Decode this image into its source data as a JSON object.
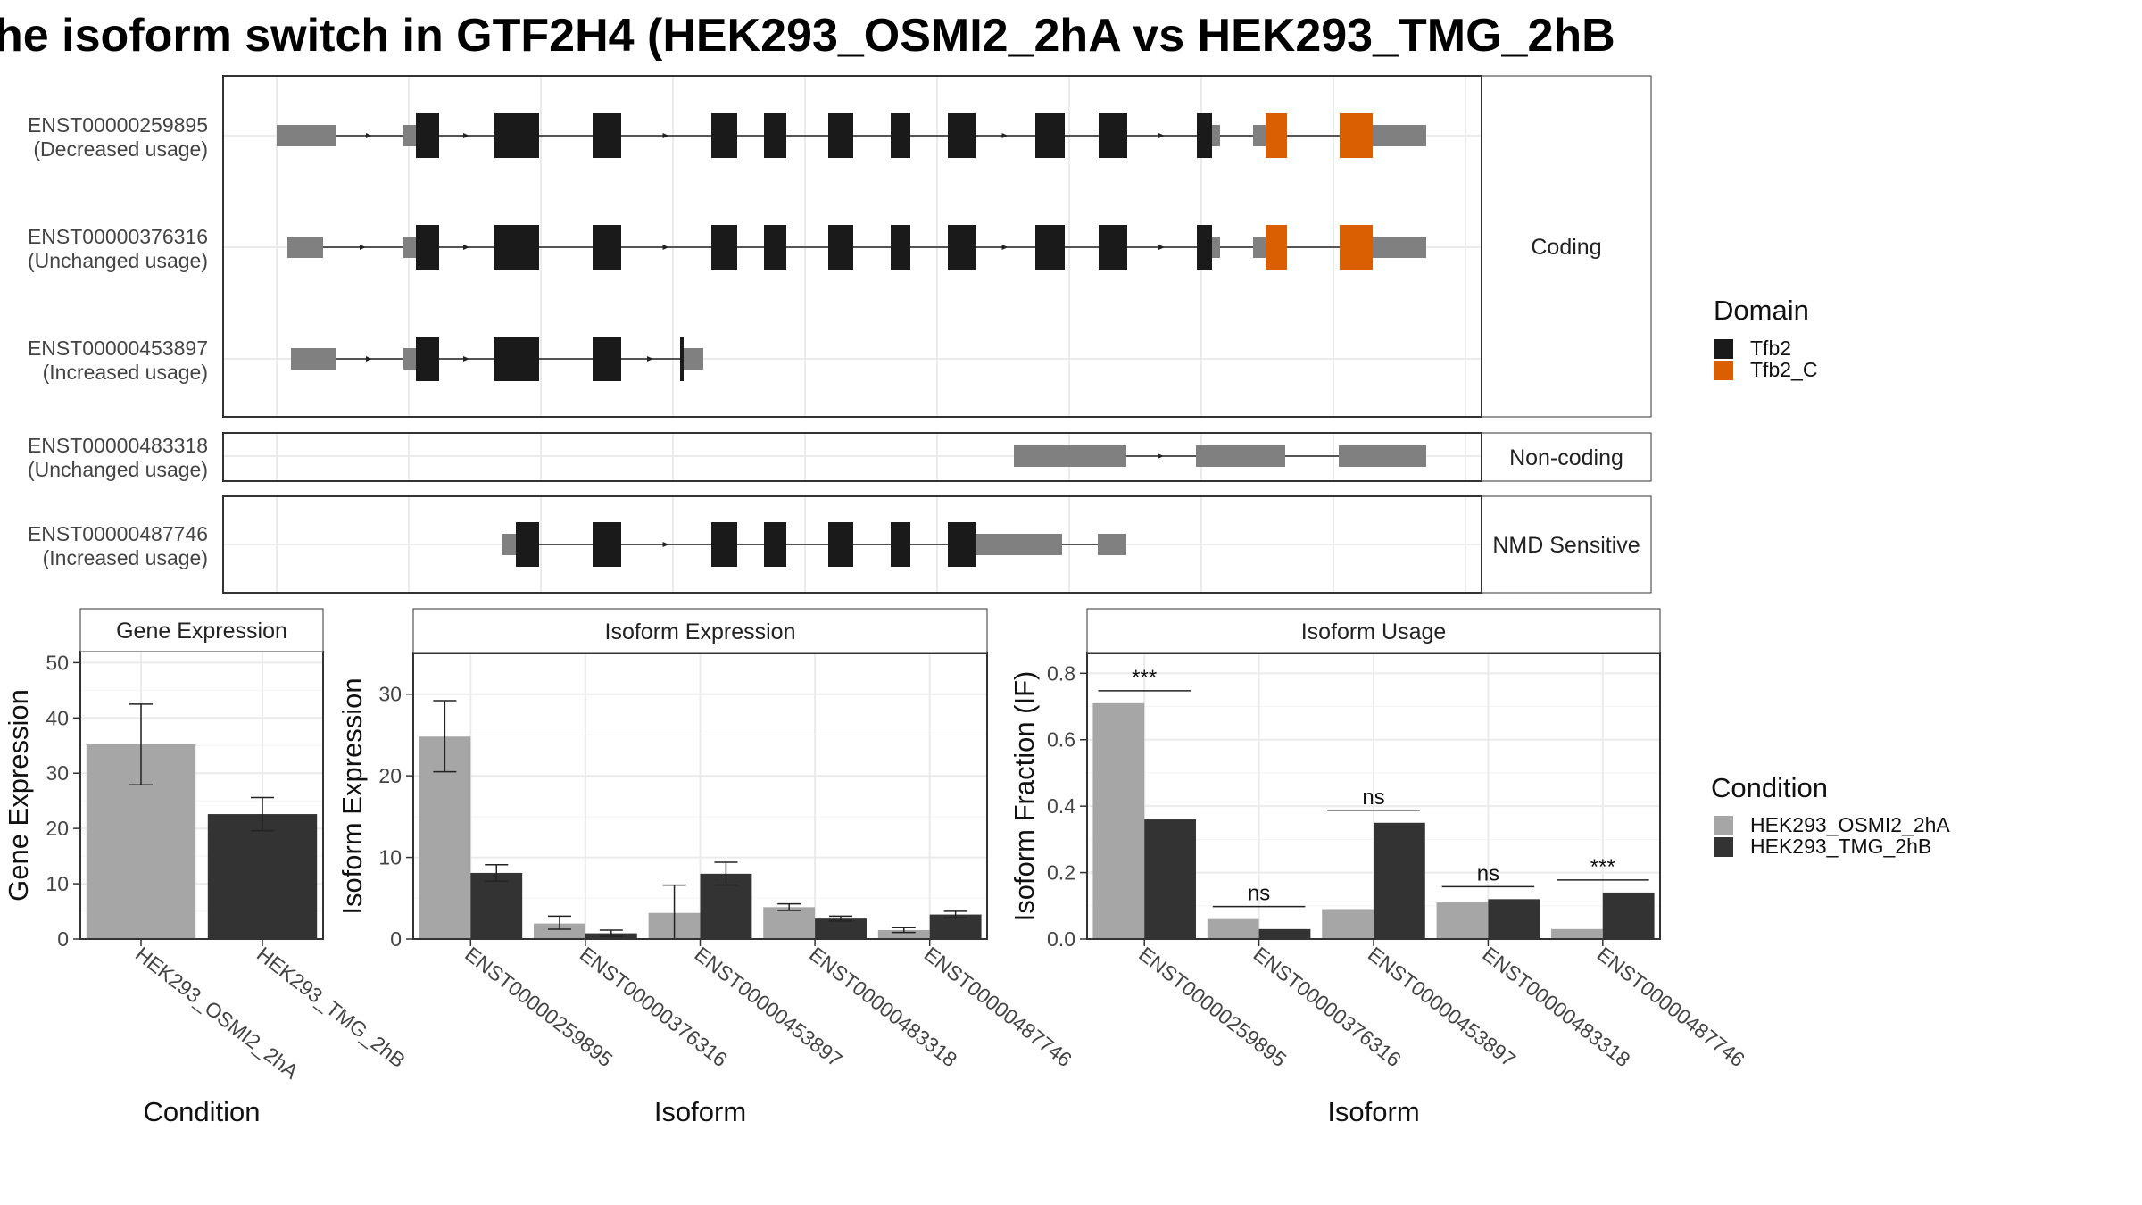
{
  "title": "he isoform switch in GTF2H4 (HEK293_OSMI2_2hA vs HEK293_TMG_2hB",
  "structure": {
    "panels": [
      {
        "label": "Coding",
        "transcripts": [
          {
            "id": "ENST00000259895",
            "usage": "(Decreased usage)"
          },
          {
            "id": "ENST00000376316",
            "usage": "(Unchanged usage)"
          },
          {
            "id": "ENST00000453897",
            "usage": "(Increased usage)"
          }
        ]
      },
      {
        "label": "Non-coding",
        "transcripts": [
          {
            "id": "ENST00000483318",
            "usage": "(Unchanged usage)"
          }
        ]
      },
      {
        "label": "NMD Sensitive",
        "transcripts": [
          {
            "id": "ENST00000487746",
            "usage": "(Increased usage)"
          }
        ]
      }
    ]
  },
  "domain_legend": {
    "title": "Domain",
    "items": [
      {
        "name": "Tfb2",
        "color": "#1a1a1a"
      },
      {
        "name": "Tfb2_C",
        "color": "#d95f02"
      }
    ]
  },
  "condition_legend": {
    "title": "Condition",
    "items": [
      {
        "name": "HEK293_OSMI2_2hA",
        "color": "#a6a6a6"
      },
      {
        "name": "HEK293_TMG_2hB",
        "color": "#333333"
      }
    ]
  },
  "chart_data": [
    {
      "type": "bar",
      "title": "Gene Expression",
      "xlabel": "Condition",
      "ylabel": "Gene Expression",
      "ylim": [
        0,
        52
      ],
      "yticks": [
        0,
        10,
        20,
        30,
        40,
        50
      ],
      "categories": [
        "HEK293_OSMI2_2hA",
        "HEK293_TMG_2hB"
      ],
      "values": [
        35.2,
        22.6
      ],
      "errors": [
        [
          27.9,
          42.5
        ],
        [
          19.6,
          25.6
        ]
      ]
    },
    {
      "type": "bar",
      "title": "Isoform Expression",
      "xlabel": "Isoform",
      "ylabel": "Isoform Expression",
      "ylim": [
        0,
        35
      ],
      "yticks": [
        0,
        10,
        20,
        30
      ],
      "categories": [
        "ENST00000259895",
        "ENST00000376316",
        "ENST00000453897",
        "ENST00000483318",
        "ENST00000487746"
      ],
      "series": [
        {
          "name": "HEK293_OSMI2_2hA",
          "values": [
            24.8,
            1.9,
            3.2,
            3.9,
            1.1
          ],
          "errors": [
            [
              20.5,
              29.2
            ],
            [
              1.2,
              2.8
            ],
            [
              0.0,
              6.6
            ],
            [
              3.5,
              4.3
            ],
            [
              0.8,
              1.4
            ]
          ]
        },
        {
          "name": "HEK293_TMG_2hB",
          "values": [
            8.1,
            0.7,
            8.0,
            2.5,
            3.0
          ],
          "errors": [
            [
              7.1,
              9.1
            ],
            [
              0.3,
              1.1
            ],
            [
              6.6,
              9.4
            ],
            [
              2.2,
              2.8
            ],
            [
              2.6,
              3.4
            ]
          ]
        }
      ]
    },
    {
      "type": "bar",
      "title": "Isoform Usage",
      "xlabel": "Isoform",
      "ylabel": "Isoform Fraction (IF)",
      "ylim": [
        0,
        0.86
      ],
      "yticks": [
        0.0,
        0.2,
        0.4,
        0.6,
        0.8
      ],
      "categories": [
        "ENST00000259895",
        "ENST00000376316",
        "ENST00000453897",
        "ENST00000483318",
        "ENST00000487746"
      ],
      "series": [
        {
          "name": "HEK293_OSMI2_2hA",
          "values": [
            0.71,
            0.06,
            0.09,
            0.11,
            0.03
          ]
        },
        {
          "name": "HEK293_TMG_2hB",
          "values": [
            0.36,
            0.03,
            0.35,
            0.12,
            0.14
          ]
        }
      ],
      "significance": [
        "***",
        "ns",
        "ns",
        "ns",
        "***"
      ]
    }
  ]
}
